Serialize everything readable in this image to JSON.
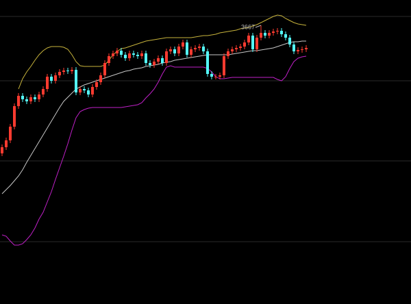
{
  "chart_data": {
    "type": "candlestick",
    "high_label": "3667",
    "up_color": "#ff3b30",
    "down_color": "#54fcfc",
    "ylim": [
      3260,
      3704
    ],
    "yticks": [
      3680,
      3586,
      3469,
      3351
    ],
    "grid": true,
    "open": [
      3480,
      3489,
      3499,
      3519,
      3549,
      3564,
      3559,
      3556,
      3562,
      3559,
      3566,
      3574,
      3592,
      3586,
      3594,
      3599,
      3601,
      3600,
      3602,
      3569,
      3574,
      3572,
      3566,
      3577,
      3584,
      3594,
      3612,
      3622,
      3626,
      3630,
      3624,
      3619,
      3626,
      3624,
      3622,
      3626,
      3612,
      3609,
      3614,
      3619,
      3612,
      3629,
      3632,
      3626,
      3636,
      3642,
      3624,
      3632,
      3634,
      3636,
      3629,
      3596,
      3592,
      3592,
      3594,
      3622,
      3629,
      3632,
      3634,
      3636,
      3642,
      3652,
      3632,
      3649,
      3656,
      3652,
      3656,
      3658,
      3659,
      3654,
      3649,
      3639,
      3629,
      3631,
      3632
    ],
    "close": [
      3489,
      3499,
      3519,
      3549,
      3564,
      3559,
      3556,
      3562,
      3559,
      3566,
      3574,
      3592,
      3586,
      3594,
      3599,
      3601,
      3600,
      3602,
      3569,
      3574,
      3572,
      3566,
      3577,
      3584,
      3594,
      3612,
      3622,
      3626,
      3630,
      3624,
      3619,
      3626,
      3624,
      3622,
      3626,
      3612,
      3609,
      3614,
      3619,
      3612,
      3629,
      3632,
      3626,
      3636,
      3642,
      3624,
      3632,
      3634,
      3636,
      3629,
      3596,
      3592,
      3592,
      3594,
      3622,
      3629,
      3632,
      3634,
      3636,
      3642,
      3652,
      3632,
      3649,
      3656,
      3652,
      3656,
      3658,
      3659,
      3654,
      3649,
      3639,
      3629,
      3631,
      3632,
      3634
    ],
    "high": [
      3493,
      3503,
      3523,
      3553,
      3568,
      3568,
      3563,
      3566,
      3566,
      3570,
      3578,
      3596,
      3596,
      3598,
      3603,
      3605,
      3605,
      3606,
      3606,
      3578,
      3578,
      3576,
      3581,
      3588,
      3598,
      3616,
      3626,
      3630,
      3634,
      3634,
      3628,
      3630,
      3630,
      3628,
      3630,
      3630,
      3616,
      3618,
      3623,
      3623,
      3633,
      3636,
      3636,
      3640,
      3646,
      3646,
      3636,
      3638,
      3640,
      3640,
      3633,
      3600,
      3596,
      3598,
      3626,
      3633,
      3636,
      3638,
      3640,
      3646,
      3656,
      3656,
      3653,
      3667,
      3660,
      3660,
      3662,
      3663,
      3663,
      3658,
      3653,
      3643,
      3635,
      3636,
      3638
    ],
    "low": [
      3476,
      3485,
      3495,
      3515,
      3545,
      3555,
      3552,
      3552,
      3555,
      3555,
      3562,
      3570,
      3582,
      3582,
      3590,
      3595,
      3596,
      3596,
      3565,
      3565,
      3568,
      3562,
      3562,
      3573,
      3580,
      3590,
      3608,
      3618,
      3622,
      3620,
      3615,
      3615,
      3620,
      3618,
      3618,
      3608,
      3605,
      3605,
      3610,
      3608,
      3608,
      3625,
      3622,
      3622,
      3632,
      3620,
      3620,
      3628,
      3630,
      3625,
      3592,
      3588,
      3588,
      3588,
      3590,
      3618,
      3625,
      3628,
      3630,
      3632,
      3638,
      3628,
      3628,
      3645,
      3648,
      3648,
      3652,
      3654,
      3650,
      3645,
      3635,
      3625,
      3625,
      3627,
      3628
    ],
    "lines": [
      {
        "color": "#c8b43c",
        "values": [
          null,
          null,
          null,
          null,
          3574,
          3589,
          3599,
          3607,
          3616,
          3624,
          3630,
          3634,
          3636,
          3636,
          3636,
          3635,
          3632,
          3624,
          3614,
          3608,
          3607,
          3607,
          3607,
          3607,
          3607,
          3609,
          3616,
          3624,
          3629,
          3633,
          3634,
          3636,
          3638,
          3640,
          3642,
          3644,
          3645,
          3646,
          3647,
          3648,
          3649,
          3649,
          3649,
          3649,
          3649,
          3649,
          3649,
          3650,
          3651,
          3652,
          3652,
          3653,
          3654,
          3656,
          3657,
          3658,
          3659,
          3660,
          3662,
          3663,
          3664,
          3666,
          3668,
          3671,
          3674,
          3677,
          3680,
          3682,
          3681,
          3677,
          3674,
          3671,
          3669,
          3668,
          3667
        ]
      },
      {
        "color": "#c8c8c8",
        "values": [
          3421,
          3427,
          3433,
          3440,
          3447,
          3456,
          3467,
          3477,
          3487,
          3497,
          3507,
          3517,
          3527,
          3537,
          3547,
          3556,
          3562,
          3568,
          3574,
          3577,
          3580,
          3582,
          3584,
          3586,
          3588,
          3590,
          3592,
          3594,
          3596,
          3598,
          3600,
          3601,
          3603,
          3604,
          3605,
          3607,
          3608,
          3609,
          3610,
          3612,
          3613,
          3614,
          3616,
          3617,
          3618,
          3619,
          3620,
          3621,
          3622,
          3623,
          3624,
          3624,
          3624,
          3624,
          3624,
          3624,
          3625,
          3626,
          3627,
          3628,
          3629,
          3630,
          3630,
          3631,
          3632,
          3633,
          3634,
          3636,
          3638,
          3640,
          3642,
          3643,
          3643,
          3644,
          3644
        ]
      },
      {
        "color": "#c020c8",
        "values": [
          3361,
          3359,
          3352,
          3346,
          3346,
          3348,
          3354,
          3361,
          3371,
          3384,
          3394,
          3409,
          3424,
          3442,
          3459,
          3476,
          3494,
          3514,
          3532,
          3541,
          3544,
          3546,
          3547,
          3547,
          3547,
          3547,
          3547,
          3547,
          3547,
          3547,
          3548,
          3549,
          3550,
          3551,
          3554,
          3561,
          3567,
          3574,
          3584,
          3596,
          3606,
          3608,
          3606,
          3606,
          3606,
          3606,
          3606,
          3606,
          3606,
          3606,
          3604,
          3599,
          3592,
          3589,
          3589,
          3590,
          3591,
          3591,
          3591,
          3591,
          3591,
          3591,
          3591,
          3591,
          3591,
          3591,
          3591,
          3588,
          3586,
          3592,
          3604,
          3614,
          3619,
          3621,
          3622
        ]
      }
    ]
  }
}
